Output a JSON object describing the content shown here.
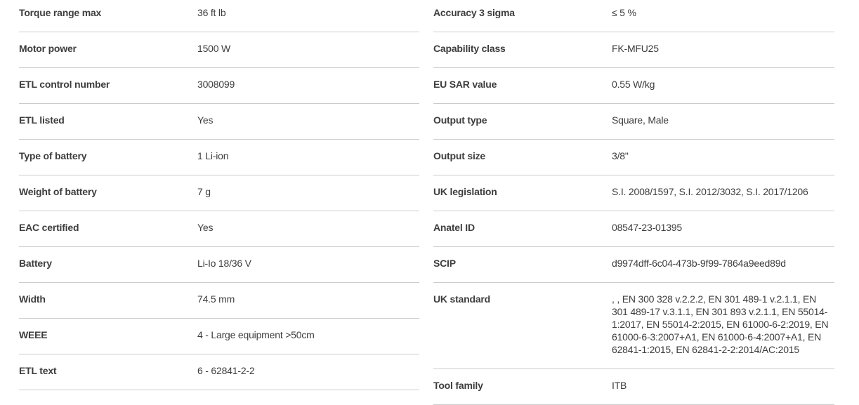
{
  "colors": {
    "background": "#ffffff",
    "text": "#3d3d3d",
    "divider": "#cccccc"
  },
  "spec_table": {
    "left_column": {
      "rows": [
        {
          "label": "Torque range max",
          "value": "36 ft lb"
        },
        {
          "label": "Motor power",
          "value": "1500 W"
        },
        {
          "label": "ETL control number",
          "value": "3008099"
        },
        {
          "label": "ETL listed",
          "value": "Yes"
        },
        {
          "label": "Type of battery",
          "value": "1 Li-ion"
        },
        {
          "label": "Weight of battery",
          "value": "7 g"
        },
        {
          "label": "EAC certified",
          "value": "Yes"
        },
        {
          "label": "Battery",
          "value": "Li-Io 18/36 V"
        },
        {
          "label": "Width",
          "value": "74.5 mm"
        },
        {
          "label": "WEEE",
          "value": "4 - Large equipment >50cm"
        },
        {
          "label": "ETL text",
          "value": "6 - 62841-2-2"
        }
      ]
    },
    "right_column": {
      "rows": [
        {
          "label": "Accuracy 3 sigma",
          "value": "≤ 5 %"
        },
        {
          "label": "Capability class",
          "value": "FK-MFU25"
        },
        {
          "label": "EU SAR value",
          "value": "0.55 W/kg"
        },
        {
          "label": "Output type",
          "value": "Square, Male"
        },
        {
          "label": "Output size",
          "value": "3/8\""
        },
        {
          "label": "UK legislation",
          "value": "S.I. 2008/1597, S.I. 2012/3032, S.I. 2017/1206"
        },
        {
          "label": "Anatel ID",
          "value": "08547-23-01395"
        },
        {
          "label": "SCIP",
          "value": "d9974dff-6c04-473b-9f99-7864a9eed89d"
        },
        {
          "label": "UK standard",
          "value": ", , EN 300 328 v.2.2.2, EN 301 489-1 v.2.1.1, EN 301 489-17 v.3.1.1, EN 301 893 v.2.1.1, EN 55014-1:2017, EN 55014-2:2015, EN 61000-6-2:2019, EN 61000-6-3:2007+A1, EN 61000-6-4:2007+A1, EN 62841-1:2015, EN 62841-2-2:2014/AC:2015"
        },
        {
          "label": "Tool family",
          "value": "ITB"
        }
      ]
    }
  }
}
